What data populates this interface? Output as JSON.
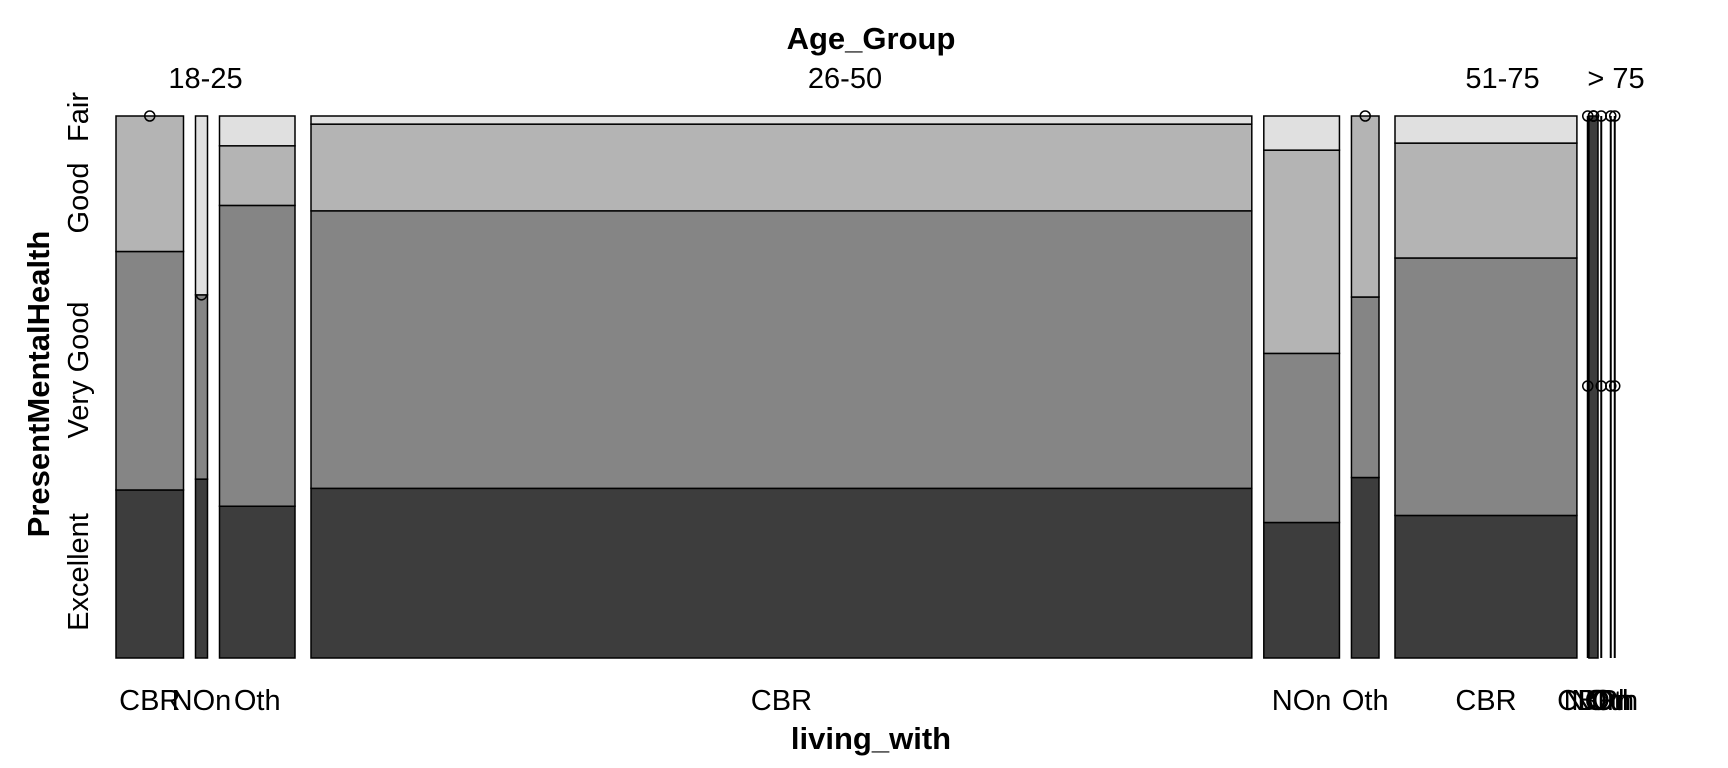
{
  "chart_data": {
    "type": "mosaic",
    "title": "Age_Group",
    "xlabel": "living_with",
    "ylabel": "PresentMentalHealth",
    "y_categories": [
      "Excellent",
      "Very Good",
      "Good",
      "Fair"
    ],
    "colors": {
      "Excellent": "#3d3d3d",
      "Very Good": "#858585",
      "Good": "#b4b4b4",
      "Fair": "#e0e0e0",
      "outline": "#000000"
    },
    "groups": [
      {
        "name": "18-25",
        "cells": [
          {
            "label": "CBR",
            "share": 0.0675,
            "values": [
              0.31,
              0.44,
              0.25,
              0.0
            ]
          },
          {
            "label": "NOn",
            "share": 0.012,
            "values": [
              0.33,
              0.34,
              0.0,
              0.33
            ]
          },
          {
            "label": "Oth",
            "share": 0.0755,
            "values": [
              0.28,
              0.555,
              0.11,
              0.055
            ]
          }
        ]
      },
      {
        "name": "26-50",
        "cells": [
          {
            "label": "CBR",
            "share": 0.939,
            "values": [
              0.313,
              0.512,
              0.16,
              0.015
            ]
          },
          {
            "label": "NOn",
            "share": 0.0755,
            "values": [
              0.25,
              0.312,
              0.375,
              0.063
            ]
          },
          {
            "label": "Oth",
            "share": 0.0275,
            "values": [
              0.333,
              0.333,
              0.334,
              0.0
            ]
          }
        ]
      },
      {
        "name": "51-75",
        "cells": [
          {
            "label": "CBR",
            "share": 0.18,
            "values": [
              0.263,
              0.475,
              0.212,
              0.05
            ]
          },
          {
            "label": "NOn",
            "share": 0.009,
            "values": [
              1.0,
              0.0,
              0.0,
              0.0
            ]
          },
          {
            "label": "Oth",
            "share": 0.0,
            "values": [
              0.0,
              0.0,
              0.0,
              0.0
            ]
          }
        ]
      },
      {
        "name": "> 75",
        "cells": [
          {
            "label": "CBR",
            "share": 0.0,
            "values": [
              0.0,
              0.0,
              0.0,
              0.0
            ]
          },
          {
            "label": "NOn",
            "share": 0.0,
            "values": [
              0.0,
              0.0,
              0.0,
              0.0
            ]
          },
          {
            "label": "Oth",
            "share": 0.0,
            "values": [
              0.0,
              0.0,
              0.0,
              0.0
            ]
          }
        ]
      }
    ]
  }
}
